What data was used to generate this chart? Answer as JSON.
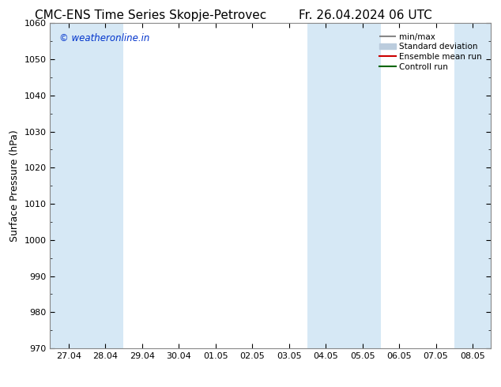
{
  "title_left": "CMC-ENS Time Series Skopje-Petrovec",
  "title_right": "Fr. 26.04.2024 06 UTC",
  "ylabel": "Surface Pressure (hPa)",
  "watermark": "© weatheronline.in",
  "ylim": [
    970,
    1060
  ],
  "yticks": [
    970,
    980,
    990,
    1000,
    1010,
    1020,
    1030,
    1040,
    1050,
    1060
  ],
  "xtick_labels": [
    "27.04",
    "28.04",
    "29.04",
    "30.04",
    "01.05",
    "02.05",
    "03.05",
    "04.05",
    "05.05",
    "06.05",
    "07.05",
    "08.05"
  ],
  "shaded_columns": [
    0,
    1,
    7,
    8,
    11
  ],
  "legend_entries": [
    "min/max",
    "Standard deviation",
    "Ensemble mean run",
    "Controll run"
  ],
  "shaded_color": "#d6e8f5",
  "background_color": "#ffffff",
  "plot_bg_color": "#ffffff",
  "title_fontsize": 11,
  "axis_label_fontsize": 9,
  "tick_fontsize": 8,
  "watermark_color": "#0033cc",
  "legend_line_color": "#888888",
  "legend_std_color": "#bbccdd",
  "legend_mean_color": "#cc0000",
  "legend_ctrl_color": "#006600"
}
